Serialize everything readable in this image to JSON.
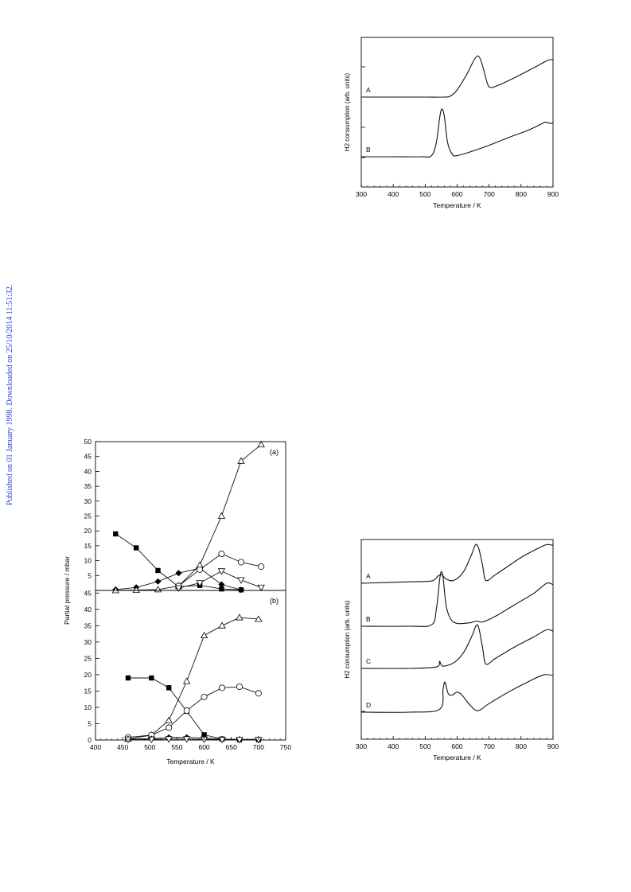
{
  "watermark": "Published on 01 January 1998. Downloaded on 25/10/2014 11:51:32.",
  "chart_data": [
    {
      "type": "line",
      "xlabel": "Temperature / K",
      "ylabel": "H2 consumption (arb. units)",
      "xlim": [
        300,
        900
      ],
      "xticks": [
        "300",
        "400",
        "500",
        "600",
        "700",
        "800",
        "900"
      ],
      "series": [
        {
          "name": "A",
          "x": [
            300,
            400,
            500,
            560,
            580,
            600,
            630,
            655,
            668,
            680,
            695,
            705,
            720,
            750,
            800,
            850,
            870,
            885,
            900
          ],
          "y": [
            0.0,
            0.0,
            0.0,
            0.0,
            0.05,
            0.3,
            0.95,
            1.6,
            1.7,
            1.3,
            0.55,
            0.4,
            0.45,
            0.62,
            0.95,
            1.3,
            1.45,
            1.55,
            1.58
          ]
        },
        {
          "name": "B",
          "x": [
            300,
            400,
            490,
            520,
            535,
            545,
            552,
            560,
            570,
            585,
            600,
            640,
            700,
            760,
            820,
            860,
            875,
            890,
            900
          ],
          "y": [
            0.0,
            0.0,
            0.0,
            0.05,
            0.6,
            1.6,
            2.0,
            1.7,
            0.6,
            0.1,
            0.05,
            0.2,
            0.48,
            0.8,
            1.1,
            1.35,
            1.45,
            1.4,
            1.42
          ]
        }
      ]
    },
    {
      "type": "line",
      "ylabel": "Partial pressure / mbar",
      "xlabel": "Temperature / K",
      "xlim": [
        400,
        750
      ],
      "xticks": [
        "400",
        "450",
        "500",
        "550",
        "600",
        "650",
        "700",
        "750"
      ],
      "panels": [
        {
          "label": "(a)",
          "ylim": [
            0,
            50
          ],
          "yticks": [
            "0",
            "5",
            "10",
            "15",
            "20",
            "25",
            "30",
            "35",
            "40",
            "45",
            "50"
          ],
          "series": [
            {
              "marker": "filled-square",
              "x": [
                437,
                475,
                515,
                553,
                592,
                632,
                668
              ],
              "y": [
                19.0,
                14.3,
                6.7,
                1.2,
                1.7,
                0.5,
                0.2
              ]
            },
            {
              "marker": "filled-diamond",
              "x": [
                437,
                475,
                515,
                553,
                592,
                632,
                668
              ],
              "y": [
                0.3,
                1.0,
                3.0,
                5.8,
                7.5,
                2.0,
                0.2
              ]
            },
            {
              "marker": "open-triangle",
              "x": [
                437,
                475,
                515,
                553,
                592,
                632,
                668,
                705
              ],
              "y": [
                0.0,
                0.1,
                0.3,
                1.5,
                8.5,
                25.0,
                43.5,
                49.0
              ]
            },
            {
              "marker": "open-circle",
              "x": [
                553,
                592,
                632,
                668,
                705
              ],
              "y": [
                1.5,
                7.0,
                12.3,
                9.5,
                8.0
              ]
            },
            {
              "marker": "open-triangle-down",
              "x": [
                553,
                592,
                632,
                668,
                705
              ],
              "y": [
                0.8,
                2.5,
                6.5,
                3.5,
                1.0
              ]
            }
          ]
        },
        {
          "label": "(b)",
          "ylim": [
            0,
            45
          ],
          "yticks": [
            "0",
            "5",
            "10",
            "15",
            "20",
            "25",
            "30",
            "35",
            "40",
            "45"
          ],
          "series": [
            {
              "marker": "filled-square",
              "x": [
                460,
                503,
                535,
                568,
                600,
                633,
                665,
                700
              ],
              "y": [
                19.0,
                19.0,
                16.0,
                8.8,
                1.6,
                0.3,
                0.1,
                0.1
              ]
            },
            {
              "marker": "open-triangle",
              "x": [
                460,
                503,
                535,
                568,
                600,
                633,
                665,
                700
              ],
              "y": [
                0.3,
                1.5,
                6.0,
                18.0,
                32.0,
                35.0,
                37.5,
                37.0
              ]
            },
            {
              "marker": "open-circle",
              "x": [
                460,
                503,
                535,
                568,
                600,
                633,
                665,
                700
              ],
              "y": [
                0.8,
                1.5,
                3.8,
                9.0,
                13.2,
                16.0,
                16.3,
                14.3
              ]
            },
            {
              "marker": "filled-diamond",
              "x": [
                460,
                503,
                535,
                568,
                600,
                633,
                665,
                700
              ],
              "y": [
                0.3,
                0.4,
                0.8,
                0.8,
                0.6,
                0.3,
                0.2,
                0.2
              ]
            },
            {
              "marker": "open-triangle-down",
              "x": [
                460,
                503,
                535,
                568,
                600,
                633,
                665,
                700
              ],
              "y": [
                0.2,
                0.2,
                0.3,
                0.3,
                0.2,
                0.1,
                0.1,
                0.1
              ]
            }
          ]
        }
      ]
    },
    {
      "type": "line",
      "xlabel": "Temperature / K",
      "ylabel": "H2 consumption (arb. units)",
      "xlim": [
        300,
        900
      ],
      "xticks": [
        "300",
        "400",
        "500",
        "600",
        "700",
        "800",
        "900"
      ],
      "series": [
        {
          "name": "A",
          "x": [
            300,
            450,
            520,
            540,
            552,
            565,
            590,
            620,
            645,
            658,
            668,
            680,
            690,
            720,
            760,
            800,
            850,
            880,
            900
          ],
          "y": [
            0.0,
            0.05,
            0.08,
            0.25,
            0.3,
            0.15,
            0.1,
            0.4,
            1.0,
            1.35,
            1.2,
            0.6,
            0.1,
            0.3,
            0.6,
            0.9,
            1.2,
            1.35,
            1.32
          ]
        },
        {
          "name": "B",
          "x": [
            300,
            450,
            520,
            535,
            545,
            550,
            556,
            566,
            580,
            600,
            640,
            660,
            680,
            720,
            780,
            840,
            880,
            900
          ],
          "y": [
            0.0,
            0.0,
            0.05,
            0.6,
            1.6,
            1.9,
            1.7,
            0.7,
            0.25,
            0.1,
            0.12,
            0.18,
            0.15,
            0.35,
            0.75,
            1.15,
            1.5,
            1.45
          ]
        },
        {
          "name": "C",
          "x": [
            300,
            450,
            535,
            545,
            555,
            590,
            620,
            645,
            660,
            668,
            680,
            690,
            720,
            780,
            840,
            880,
            900
          ],
          "y": [
            0.0,
            0.0,
            0.05,
            0.25,
            0.08,
            0.2,
            0.55,
            1.1,
            1.5,
            1.4,
            0.7,
            0.15,
            0.35,
            0.75,
            1.1,
            1.35,
            1.3
          ]
        },
        {
          "name": "D",
          "x": [
            300,
            450,
            545,
            556,
            562,
            572,
            585,
            600,
            615,
            640,
            665,
            700,
            760,
            820,
            870,
            900
          ],
          "y": [
            0.0,
            0.0,
            0.1,
            0.8,
            1.05,
            0.65,
            0.6,
            0.7,
            0.6,
            0.25,
            0.05,
            0.3,
            0.7,
            1.05,
            1.3,
            1.28
          ]
        }
      ]
    }
  ]
}
